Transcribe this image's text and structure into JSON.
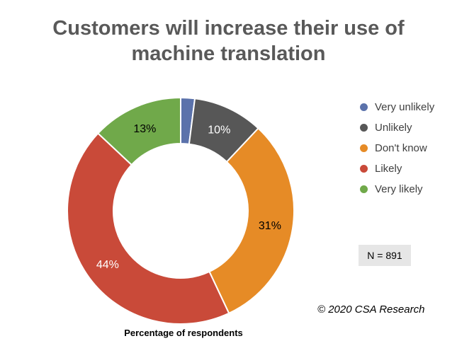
{
  "chart_data": {
    "type": "pie",
    "variant": "donut",
    "title_lines": [
      "Customers will increase their use of",
      "machine translation"
    ],
    "categories": [
      "Very unlikely",
      "Unlikely",
      "Don't know",
      "Likely",
      "Very likely"
    ],
    "values": [
      2,
      10,
      31,
      44,
      13
    ],
    "data_labels": [
      "",
      "10%",
      "31%",
      "44%",
      "13%"
    ],
    "colors": [
      "#5b72ab",
      "#575757",
      "#e68b26",
      "#c94a39",
      "#70a94a"
    ],
    "label_colors": [
      "#000000",
      "#ffffff",
      "#000000",
      "#ffffff",
      "#000000"
    ],
    "legend_position": "right",
    "xlabel": "Percentage of respondents"
  },
  "annotations": {
    "sample_size": "N = 891",
    "copyright": "© 2020 CSA Research"
  }
}
